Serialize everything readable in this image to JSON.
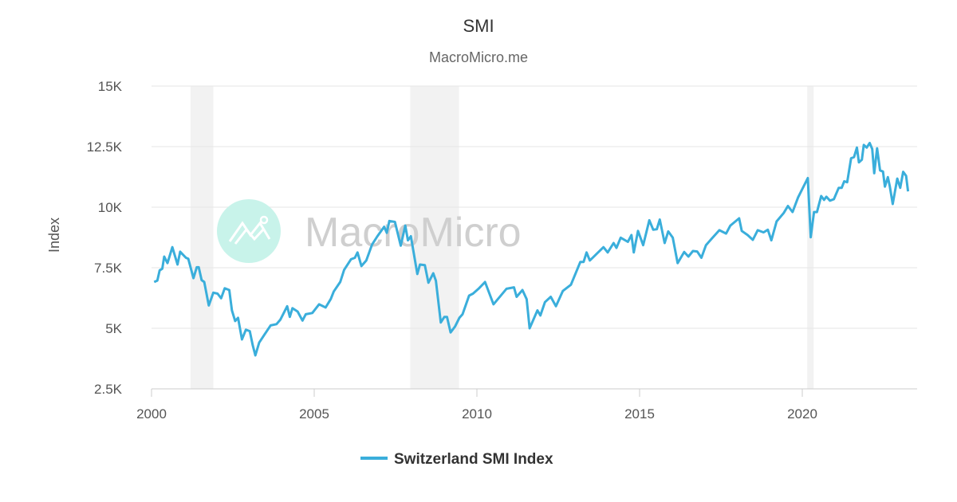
{
  "chart_data": {
    "type": "line",
    "title": "SMI",
    "subtitle": "MacroMicro.me",
    "watermark": "MacroMicro",
    "ylabel": "Index",
    "xlabel": "",
    "xlim": [
      2000,
      2023.35
    ],
    "ylim": [
      2500,
      15000
    ],
    "y_ticks": [
      {
        "value": 2500,
        "label": "2.5K"
      },
      {
        "value": 5000,
        "label": "5K"
      },
      {
        "value": 7500,
        "label": "7.5K"
      },
      {
        "value": 10000,
        "label": "10K"
      },
      {
        "value": 12500,
        "label": "12.5K"
      },
      {
        "value": 15000,
        "label": "15K"
      }
    ],
    "x_ticks": [
      {
        "value": 2000,
        "label": "2000"
      },
      {
        "value": 2005,
        "label": "2005"
      },
      {
        "value": 2010,
        "label": "2010"
      },
      {
        "value": 2015,
        "label": "2015"
      },
      {
        "value": 2020,
        "label": "2020"
      }
    ],
    "grid": true,
    "legend_position": "bottom",
    "shaded_periods": [
      [
        2001.2,
        2001.9
      ],
      [
        2007.95,
        2009.45
      ],
      [
        2020.15,
        2020.35
      ]
    ],
    "colors": {
      "series": "#3aaedb",
      "shade": "#f2f2f2",
      "grid": "#e6e6e6",
      "watermark_logo": "#c8f3ea"
    },
    "series": [
      {
        "name": "Switzerland SMI Index",
        "x": [
          2000.08,
          2000.18,
          2000.25,
          2000.33,
          2000.39,
          2000.49,
          2000.64,
          2000.8,
          2000.88,
          2001.06,
          2001.13,
          2001.29,
          2001.39,
          2001.45,
          2001.54,
          2001.62,
          2001.76,
          2001.9,
          2002.03,
          2002.14,
          2002.25,
          2002.39,
          2002.47,
          2002.57,
          2002.66,
          2002.78,
          2002.9,
          2003.02,
          2003.11,
          2003.19,
          2003.31,
          2003.47,
          2003.66,
          2003.84,
          2003.96,
          2004.17,
          2004.25,
          2004.33,
          2004.49,
          2004.64,
          2004.74,
          2004.94,
          2005.15,
          2005.35,
          2005.51,
          2005.6,
          2005.8,
          2005.92,
          2006.13,
          2006.25,
          2006.33,
          2006.45,
          2006.6,
          2006.78,
          2006.94,
          2007.15,
          2007.23,
          2007.31,
          2007.48,
          2007.66,
          2007.8,
          2007.88,
          2007.97,
          2008.17,
          2008.25,
          2008.4,
          2008.51,
          2008.66,
          2008.74,
          2008.89,
          2009.0,
          2009.08,
          2009.19,
          2009.33,
          2009.46,
          2009.56,
          2009.76,
          2009.88,
          2010.05,
          2010.25,
          2010.51,
          2010.91,
          2011.14,
          2011.22,
          2011.4,
          2011.53,
          2011.62,
          2011.86,
          2011.95,
          2012.09,
          2012.27,
          2012.43,
          2012.64,
          2012.89,
          2013.18,
          2013.28,
          2013.37,
          2013.47,
          2013.64,
          2013.89,
          2014.02,
          2014.2,
          2014.29,
          2014.42,
          2014.64,
          2014.75,
          2014.82,
          2014.95,
          2015.11,
          2015.3,
          2015.42,
          2015.53,
          2015.62,
          2015.77,
          2015.88,
          2016.02,
          2016.17,
          2016.37,
          2016.5,
          2016.64,
          2016.77,
          2016.9,
          2017.04,
          2017.21,
          2017.45,
          2017.66,
          2017.79,
          2018.06,
          2018.14,
          2018.32,
          2018.48,
          2018.63,
          2018.81,
          2018.94,
          2019.05,
          2019.21,
          2019.43,
          2019.56,
          2019.7,
          2019.87,
          2020.17,
          2020.26,
          2020.36,
          2020.45,
          2020.58,
          2020.67,
          2020.74,
          2020.85,
          2020.97,
          2021.12,
          2021.21,
          2021.29,
          2021.38,
          2021.5,
          2021.59,
          2021.68,
          2021.74,
          2021.83,
          2021.89,
          2021.98,
          2022.07,
          2022.15,
          2022.21,
          2022.3,
          2022.39,
          2022.48,
          2022.54,
          2022.63,
          2022.69,
          2022.78,
          2022.92,
          2023.01,
          2023.1,
          2023.19,
          2023.25
        ],
        "values": [
          6910,
          6970,
          7390,
          7460,
          7960,
          7690,
          8350,
          7630,
          8160,
          7910,
          7870,
          7070,
          7520,
          7520,
          6990,
          6910,
          5940,
          6470,
          6430,
          6240,
          6650,
          6580,
          5740,
          5300,
          5430,
          4540,
          4940,
          4880,
          4300,
          3880,
          4410,
          4740,
          5120,
          5170,
          5360,
          5910,
          5470,
          5830,
          5690,
          5320,
          5580,
          5630,
          5990,
          5860,
          6210,
          6520,
          6910,
          7410,
          7850,
          7910,
          8130,
          7570,
          7800,
          8460,
          8800,
          9190,
          8940,
          9430,
          9390,
          8410,
          9240,
          8630,
          8800,
          7240,
          7630,
          7610,
          6880,
          7270,
          6960,
          5240,
          5470,
          5470,
          4830,
          5080,
          5430,
          5580,
          6350,
          6430,
          6630,
          6910,
          5990,
          6630,
          6690,
          6300,
          6580,
          6200,
          5000,
          5740,
          5530,
          6080,
          6300,
          5910,
          6540,
          6800,
          7740,
          7740,
          8130,
          7800,
          8020,
          8350,
          8130,
          8520,
          8320,
          8740,
          8570,
          8850,
          8130,
          9020,
          8430,
          9460,
          9070,
          9090,
          9490,
          8520,
          9000,
          8740,
          7690,
          8150,
          7960,
          8190,
          8170,
          7910,
          8430,
          8690,
          9050,
          8910,
          9240,
          9540,
          9020,
          8850,
          8650,
          9050,
          8960,
          9070,
          8630,
          9410,
          9760,
          10050,
          9800,
          10400,
          11200,
          8760,
          9800,
          9800,
          10460,
          10300,
          10430,
          10270,
          10330,
          10800,
          10800,
          11070,
          11030,
          12020,
          12070,
          12460,
          11850,
          11960,
          12570,
          12460,
          12650,
          12400,
          11400,
          12430,
          11520,
          11470,
          10850,
          11240,
          10850,
          10130,
          11180,
          10800,
          11460,
          11290,
          10650
        ]
      }
    ]
  }
}
